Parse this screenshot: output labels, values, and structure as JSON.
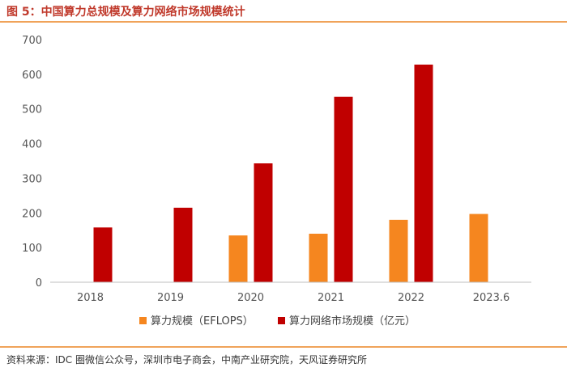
{
  "header": {
    "title": "图 5：中国算力总规模及算力网络市场规模统计"
  },
  "footer": {
    "source": "资料来源：IDC 圈微信公众号，深圳市电子商会，中南产业研究院，天风证券研究所"
  },
  "colors": {
    "series1": "#f5861f",
    "series2": "#c00000",
    "axis": "#bfbfbf",
    "rule": "#f0a35a"
  },
  "chart_data": {
    "type": "bar",
    "title": "中国算力总规模及算力网络市场规模统计",
    "categories": [
      "2018",
      "2019",
      "2020",
      "2021",
      "2022",
      "2023.6"
    ],
    "series": [
      {
        "name": "算力规模（EFLOPS）",
        "values": [
          null,
          null,
          135,
          140,
          180,
          197
        ]
      },
      {
        "name": "算力网络市场规模（亿元）",
        "values": [
          158,
          215,
          343,
          535,
          628,
          null
        ]
      }
    ],
    "ylim": [
      0,
      700
    ],
    "yticks": [
      0,
      100,
      200,
      300,
      400,
      500,
      600,
      700
    ],
    "xlabel": "",
    "ylabel": "",
    "legend": "bottom",
    "grid": false
  }
}
